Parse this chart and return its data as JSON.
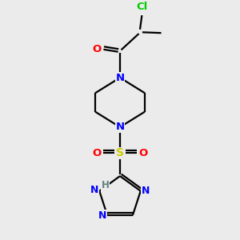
{
  "bg_color": "#ebebeb",
  "bond_color": "#000000",
  "colors": {
    "N": "#0000ff",
    "O": "#ff0000",
    "S": "#cccc00",
    "Cl": "#00cc00",
    "H": "#608080",
    "C": "#000000"
  },
  "figsize": [
    3.0,
    3.0
  ],
  "dpi": 100
}
